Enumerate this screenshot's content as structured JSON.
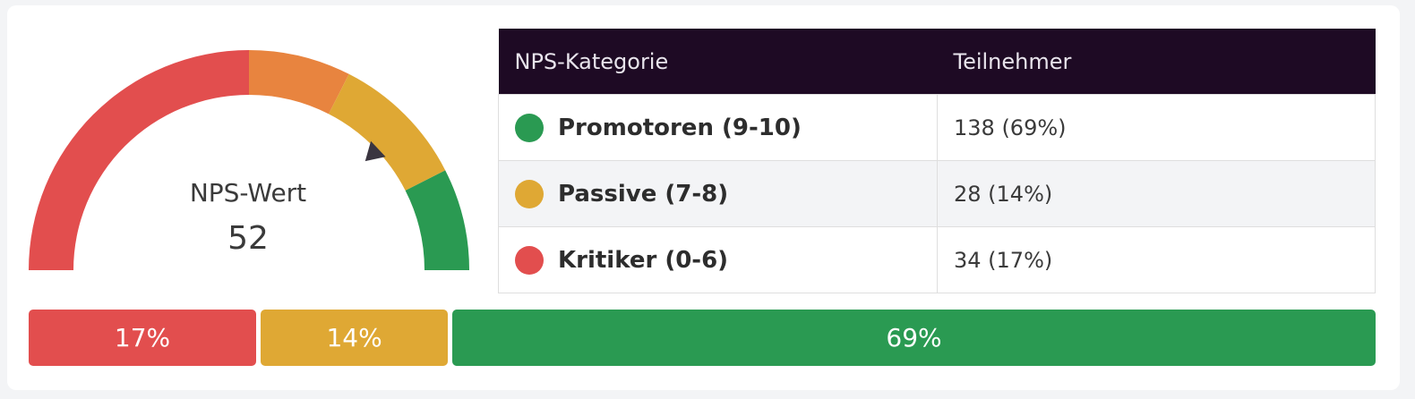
{
  "colors": {
    "red": "#e24e4e",
    "orange": "#e8843f",
    "yellow": "#dfa834",
    "green": "#2a9a52",
    "header_bg": "#1e0a24"
  },
  "gauge": {
    "label": "NPS-Wert",
    "value": "52",
    "score": 52,
    "min": -100,
    "max": 100,
    "bands": [
      {
        "from": -100,
        "to": 0,
        "color": "#e24e4e"
      },
      {
        "from": 0,
        "to": 30,
        "color": "#e8843f"
      },
      {
        "from": 30,
        "to": 70,
        "color": "#dfa834"
      },
      {
        "from": 70,
        "to": 100,
        "color": "#2a9a52"
      }
    ]
  },
  "table": {
    "headers": [
      "NPS-Kategorie",
      "Teilnehmer"
    ],
    "rows": [
      {
        "category": "Promotoren (9-10)",
        "count": "138 (69%)",
        "color": "#2a9a52"
      },
      {
        "category": "Passive (7-8)",
        "count": "28 (14%)",
        "color": "#dfa834"
      },
      {
        "category": "Kritiker (0-6)",
        "count": "34 (17%)",
        "color": "#e24e4e"
      }
    ]
  },
  "chart_data": {
    "type": "bar",
    "categories": [
      "Kritiker (0-6)",
      "Passive (7-8)",
      "Promotoren (9-10)"
    ],
    "values": [
      17,
      14,
      69
    ],
    "labels": [
      "17%",
      "14%",
      "69%"
    ],
    "colors": [
      "#e24e4e",
      "#dfa834",
      "#2a9a52"
    ],
    "stacked": true,
    "orientation": "horizontal"
  }
}
